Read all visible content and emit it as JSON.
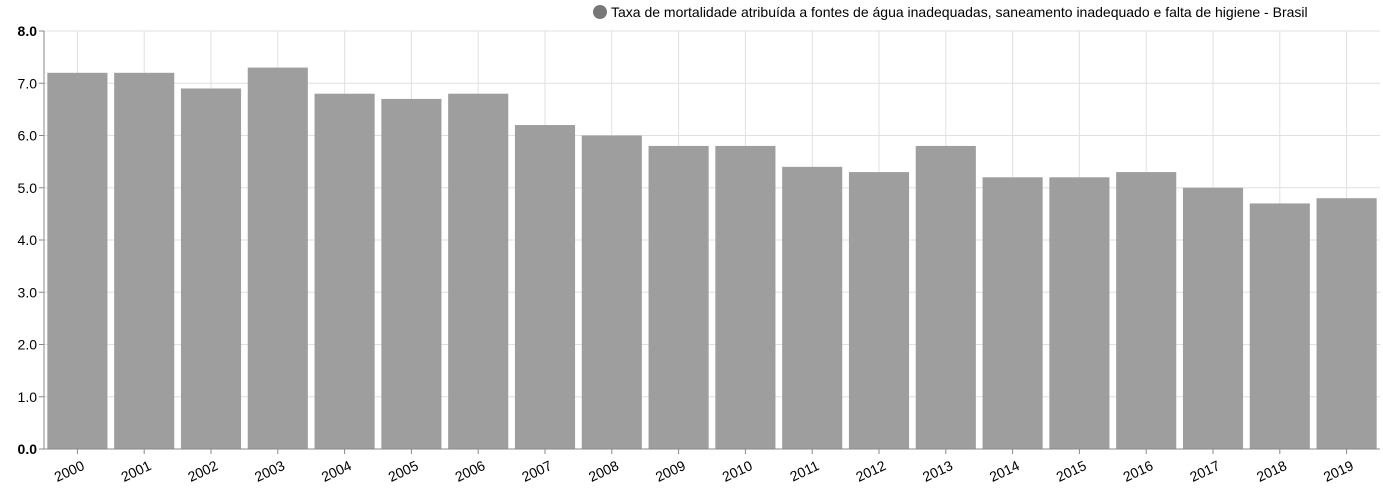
{
  "legend": {
    "label": "Taxa de mortalidade atribuída a fontes de água inadequadas, saneamento inadequado e falta de higiene - Brasil",
    "marker_color": "#777777"
  },
  "colors": {
    "bar": "#9e9e9e",
    "grid": "#e0e0e0",
    "axis": "#888888",
    "text": "#000000"
  },
  "chart_data": {
    "type": "bar",
    "categories": [
      "2000",
      "2001",
      "2002",
      "2003",
      "2004",
      "2005",
      "2006",
      "2007",
      "2008",
      "2009",
      "2010",
      "2011",
      "2012",
      "2013",
      "2014",
      "2015",
      "2016",
      "2017",
      "2018",
      "2019"
    ],
    "series": [
      {
        "name": "Taxa de mortalidade atribuída a fontes de água inadequadas, saneamento inadequado e falta de higiene - Brasil",
        "values": [
          7.2,
          7.2,
          6.9,
          7.3,
          6.8,
          6.7,
          6.8,
          6.2,
          6.0,
          5.8,
          5.8,
          5.4,
          5.3,
          5.8,
          5.2,
          5.2,
          5.3,
          5.0,
          4.7,
          4.8
        ]
      }
    ],
    "y_ticks": [
      "0.0",
      "1.0",
      "2.0",
      "3.0",
      "4.0",
      "5.0",
      "6.0",
      "7.0",
      "8.0"
    ],
    "ylim": [
      0,
      8
    ],
    "xlabel": "",
    "ylabel": "",
    "title": "",
    "grid": true,
    "legend_position": "top-right"
  }
}
